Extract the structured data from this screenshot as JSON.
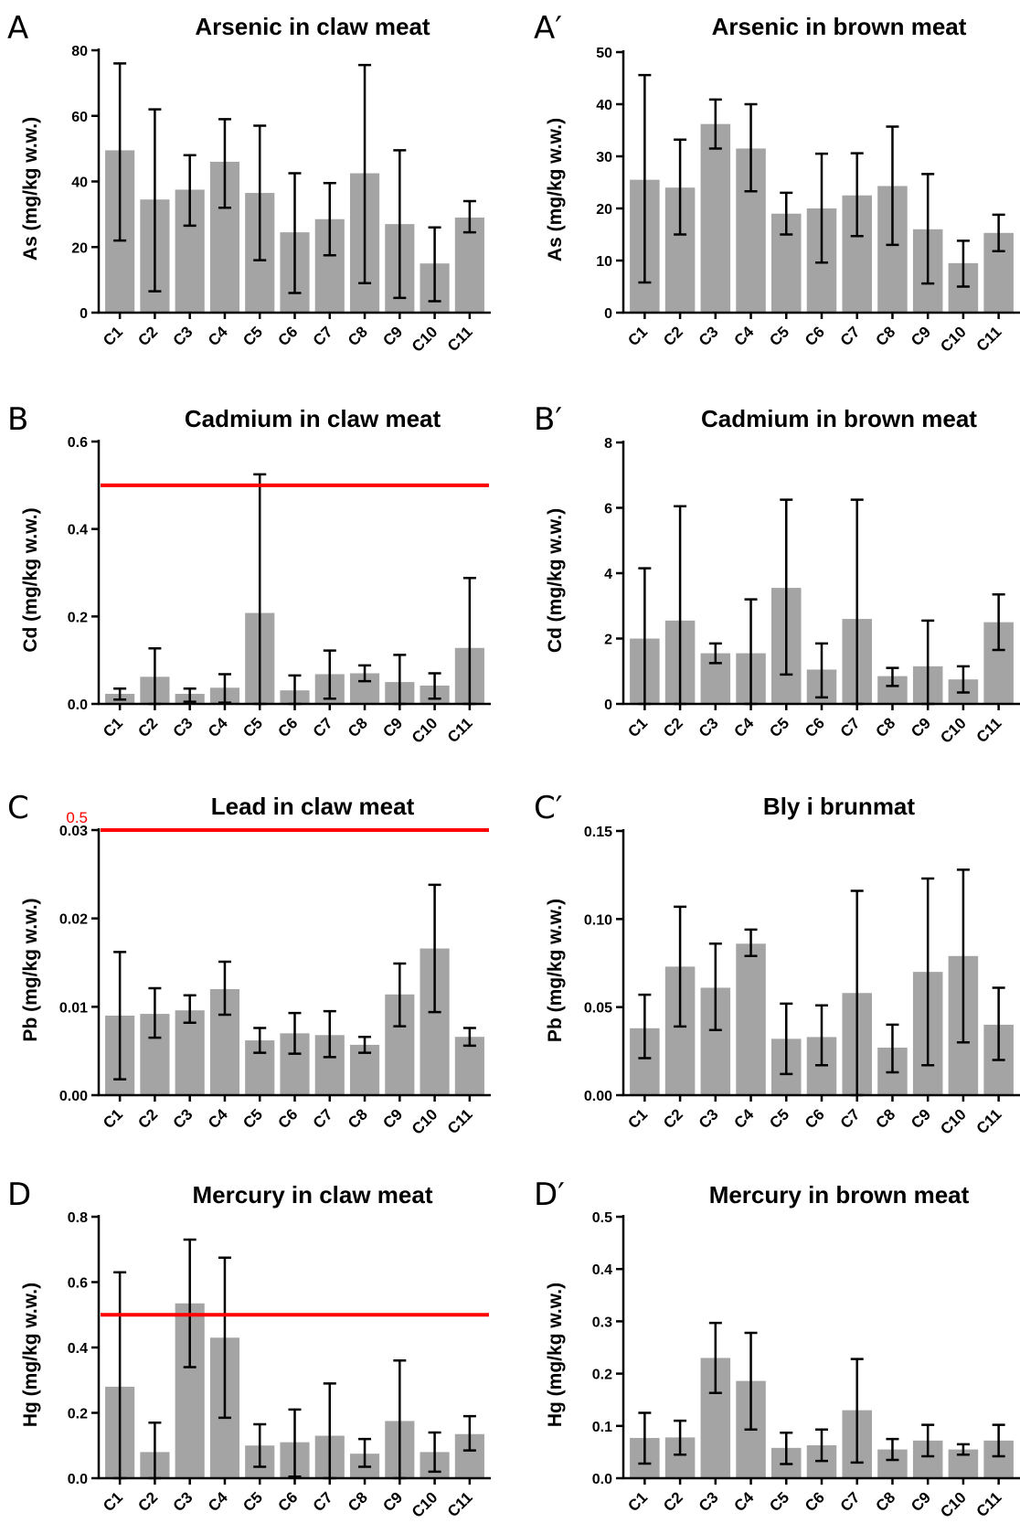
{
  "colors": {
    "bar": "#a4a4a4",
    "limit_line": "#ff0000",
    "axis": "#000000"
  },
  "chart_data": [
    {
      "id": "A",
      "letter": "A",
      "type": "bar",
      "title": "Arsenic in claw meat",
      "ylabel": "As (mg/kg w.w.)",
      "categories": [
        "C1",
        "C2",
        "C3",
        "C4",
        "C5",
        "C6",
        "C7",
        "C8",
        "C9",
        "C10",
        "C11"
      ],
      "values": [
        49.5,
        34.5,
        37.5,
        46,
        36.5,
        24.5,
        28.5,
        42.5,
        27,
        15,
        29
      ],
      "err_low": [
        22,
        6.5,
        26.5,
        32,
        16,
        6,
        17.5,
        9,
        4.5,
        3.5,
        24.5
      ],
      "err_high": [
        76,
        62,
        48,
        59,
        57,
        42.5,
        39.5,
        75.5,
        49.5,
        26,
        34
      ],
      "ylim": [
        0,
        80
      ],
      "yticks": [
        0,
        20,
        40,
        60,
        80
      ],
      "ytick_labels": [
        "0",
        "20",
        "40",
        "60",
        "80"
      ]
    },
    {
      "id": "A2",
      "letter": "A′",
      "type": "bar",
      "title": "Arsenic in brown meat",
      "ylabel": "As (mg/kg w.w.)",
      "categories": [
        "C1",
        "C2",
        "C3",
        "C4",
        "C5",
        "C6",
        "C7",
        "C8",
        "C9",
        "C10",
        "C11"
      ],
      "values": [
        25.5,
        24,
        36.2,
        31.5,
        19,
        20,
        22.5,
        24.3,
        16,
        9.5,
        15.3
      ],
      "err_low": [
        5.8,
        15,
        31.5,
        23.3,
        15,
        9.6,
        14.7,
        13,
        5.6,
        5,
        11.8
      ],
      "err_high": [
        45.6,
        33.2,
        40.9,
        40,
        23,
        30.5,
        30.6,
        35.7,
        26.6,
        13.8,
        18.8
      ],
      "ylim": [
        0,
        50
      ],
      "yticks": [
        0,
        10,
        20,
        30,
        40,
        50
      ],
      "ytick_labels": [
        "0",
        "10",
        "20",
        "30",
        "40",
        "50"
      ]
    },
    {
      "id": "B",
      "letter": "B",
      "type": "bar",
      "title": "Cadmium in claw meat",
      "ylabel": "Cd (mg/kg w.w.)",
      "categories": [
        "C1",
        "C2",
        "C3",
        "C4",
        "C5",
        "C6",
        "C7",
        "C8",
        "C9",
        "C10",
        "C11"
      ],
      "values": [
        0.023,
        0.062,
        0.023,
        0.037,
        0.208,
        0.031,
        0.068,
        0.07,
        0.05,
        0.042,
        0.128
      ],
      "err_low": [
        0.01,
        0,
        0.005,
        0.003,
        0,
        0,
        0.012,
        0.052,
        0,
        0.012,
        0
      ],
      "err_high": [
        0.035,
        0.127,
        0.035,
        0.068,
        0.525,
        0.065,
        0.122,
        0.088,
        0.112,
        0.07,
        0.288
      ],
      "ylim": [
        0,
        0.6
      ],
      "yticks": [
        0,
        0.2,
        0.4,
        0.6
      ],
      "ytick_labels": [
        "0.0",
        "0.2",
        "0.4",
        "0.6"
      ],
      "ref_line": 0.5
    },
    {
      "id": "B2",
      "letter": "B′",
      "type": "bar",
      "title": "Cadmium in brown meat",
      "ylabel": "Cd (mg/kg w.w.)",
      "categories": [
        "C1",
        "C2",
        "C3",
        "C4",
        "C5",
        "C6",
        "C7",
        "C8",
        "C9",
        "C10",
        "C11"
      ],
      "values": [
        2.0,
        2.55,
        1.55,
        1.55,
        3.55,
        1.05,
        2.6,
        0.85,
        1.15,
        0.75,
        2.5
      ],
      "err_low": [
        0,
        0,
        1.25,
        0,
        0.9,
        0.2,
        0,
        0.55,
        0,
        0.35,
        1.65
      ],
      "err_high": [
        4.15,
        6.05,
        1.85,
        3.2,
        6.25,
        1.85,
        6.25,
        1.1,
        2.55,
        1.15,
        3.35
      ],
      "ylim": [
        0,
        8
      ],
      "yticks": [
        0,
        2,
        4,
        6,
        8
      ],
      "ytick_labels": [
        "0",
        "2",
        "4",
        "6",
        "8"
      ]
    },
    {
      "id": "C",
      "letter": "C",
      "type": "bar",
      "title": "Lead in claw meat",
      "ylabel": "Pb (mg/kg w.w.)",
      "categories": [
        "C1",
        "C2",
        "C3",
        "C4",
        "C5",
        "C6",
        "C7",
        "C8",
        "C9",
        "C10",
        "C11"
      ],
      "values": [
        0.009,
        0.0092,
        0.0096,
        0.012,
        0.0062,
        0.007,
        0.0068,
        0.0057,
        0.0114,
        0.0166,
        0.0066
      ],
      "err_low": [
        0.0018,
        0.0065,
        0.0082,
        0.0091,
        0.0048,
        0.0047,
        0.0043,
        0.0048,
        0.0078,
        0.0094,
        0.0056
      ],
      "err_high": [
        0.0162,
        0.0121,
        0.0113,
        0.0151,
        0.0076,
        0.0093,
        0.0095,
        0.0066,
        0.0149,
        0.0238,
        0.0076
      ],
      "ylim": [
        0,
        0.03
      ],
      "yticks": [
        0,
        0.01,
        0.02,
        0.03
      ],
      "ytick_labels": [
        "0.00",
        "0.01",
        "0.02",
        "0.03"
      ],
      "ref_line": 0.03,
      "ref_label": "0.5"
    },
    {
      "id": "C2",
      "letter": "C′",
      "type": "bar",
      "title": "Bly i brunmat",
      "ylabel": "Pb (mg/kg w.w.)",
      "categories": [
        "C1",
        "C2",
        "C3",
        "C4",
        "C5",
        "C6",
        "C7",
        "C8",
        "C9",
        "C10",
        "C11"
      ],
      "values": [
        0.038,
        0.073,
        0.061,
        0.086,
        0.032,
        0.033,
        0.058,
        0.027,
        0.07,
        0.079,
        0.04
      ],
      "err_low": [
        0.021,
        0.039,
        0.037,
        0.079,
        0.012,
        0.017,
        0,
        0.013,
        0.017,
        0.03,
        0.02
      ],
      "err_high": [
        0.057,
        0.107,
        0.086,
        0.094,
        0.052,
        0.051,
        0.116,
        0.04,
        0.123,
        0.128,
        0.061
      ],
      "ylim": [
        0,
        0.15
      ],
      "yticks": [
        0,
        0.05,
        0.1,
        0.15
      ],
      "ytick_labels": [
        "0.00",
        "0.05",
        "0.10",
        "0.15"
      ]
    },
    {
      "id": "D",
      "letter": "D",
      "type": "bar",
      "title": "Mercury in claw meat",
      "ylabel": "Hg (mg/kg w.w.)",
      "categories": [
        "C1",
        "C2",
        "C3",
        "C4",
        "C5",
        "C6",
        "C7",
        "C8",
        "C9",
        "C10",
        "C11"
      ],
      "values": [
        0.28,
        0.08,
        0.535,
        0.43,
        0.1,
        0.11,
        0.13,
        0.075,
        0.175,
        0.08,
        0.135
      ],
      "err_low": [
        0,
        0,
        0.34,
        0.185,
        0.035,
        0.005,
        0,
        0.035,
        0,
        0.02,
        0.085
      ],
      "err_high": [
        0.63,
        0.17,
        0.73,
        0.675,
        0.165,
        0.21,
        0.29,
        0.12,
        0.36,
        0.14,
        0.19
      ],
      "ylim": [
        0,
        0.8
      ],
      "yticks": [
        0,
        0.2,
        0.4,
        0.6,
        0.8
      ],
      "ytick_labels": [
        "0.0",
        "0.2",
        "0.4",
        "0.6",
        "0.8"
      ],
      "ref_line": 0.5
    },
    {
      "id": "D2",
      "letter": "D′",
      "type": "bar",
      "title": "Mercury in brown meat",
      "ylabel": "Hg (mg/kg w.w.)",
      "categories": [
        "C1",
        "C2",
        "C3",
        "C4",
        "C5",
        "C6",
        "C7",
        "C8",
        "C9",
        "C10",
        "C11"
      ],
      "values": [
        0.077,
        0.078,
        0.23,
        0.186,
        0.058,
        0.063,
        0.13,
        0.055,
        0.072,
        0.055,
        0.072
      ],
      "err_low": [
        0.028,
        0.045,
        0.163,
        0.093,
        0.027,
        0.033,
        0.03,
        0.035,
        0.042,
        0.045,
        0.042
      ],
      "err_high": [
        0.125,
        0.11,
        0.297,
        0.278,
        0.087,
        0.093,
        0.228,
        0.075,
        0.102,
        0.065,
        0.102
      ],
      "ylim": [
        0,
        0.5
      ],
      "yticks": [
        0,
        0.1,
        0.2,
        0.3,
        0.4,
        0.5
      ],
      "ytick_labels": [
        "0.0",
        "0.1",
        "0.2",
        "0.3",
        "0.4",
        "0.5"
      ]
    }
  ]
}
